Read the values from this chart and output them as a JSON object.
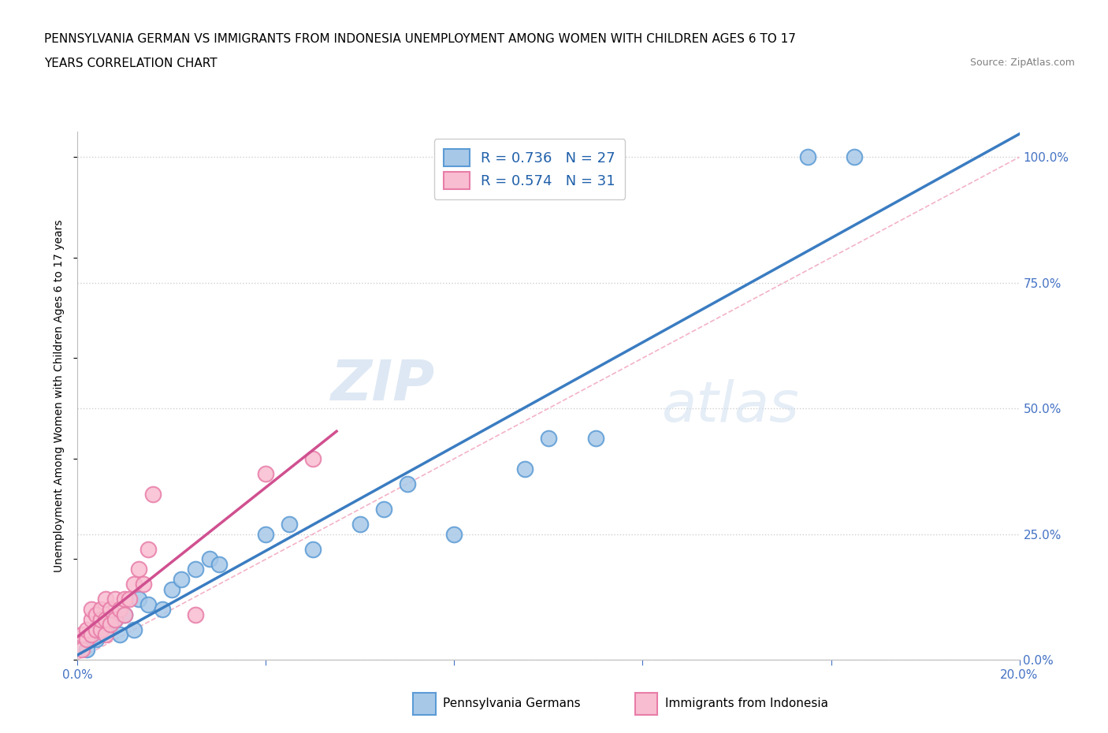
{
  "title_line1": "PENNSYLVANIA GERMAN VS IMMIGRANTS FROM INDONESIA UNEMPLOYMENT AMONG WOMEN WITH CHILDREN AGES 6 TO 17",
  "title_line2": "YEARS CORRELATION CHART",
  "source": "Source: ZipAtlas.com",
  "ylabel": "Unemployment Among Women with Children Ages 6 to 17 years",
  "xlim": [
    0.0,
    0.2
  ],
  "ylim": [
    0.0,
    1.05
  ],
  "y_ticks": [
    0.0,
    0.25,
    0.5,
    0.75,
    1.0
  ],
  "legend_entry1_label": "R = 0.736   N = 27",
  "legend_entry2_label": "R = 0.574   N = 31",
  "watermark_zip": "ZIP",
  "watermark_atlas": "atlas",
  "blue_color": "#a8c8e8",
  "blue_edge_color": "#5b9bd5",
  "pink_color": "#f8bdd0",
  "pink_edge_color": "#e87da8",
  "blue_line_color": "#3a7cc1",
  "pink_line_color": "#d05090",
  "diag_color": "#f0a0b8",
  "grid_color": "#d0d0d0",
  "tick_color": "#4472c4",
  "blue_scatter_x": [
    0.002,
    0.004,
    0.006,
    0.008,
    0.009,
    0.01,
    0.012,
    0.013,
    0.015,
    0.018,
    0.02,
    0.022,
    0.025,
    0.028,
    0.03,
    0.04,
    0.045,
    0.05,
    0.06,
    0.065,
    0.07,
    0.08,
    0.095,
    0.1,
    0.11,
    0.155,
    0.165
  ],
  "blue_scatter_y": [
    0.02,
    0.04,
    0.06,
    0.08,
    0.05,
    0.09,
    0.06,
    0.12,
    0.11,
    0.1,
    0.14,
    0.16,
    0.18,
    0.2,
    0.19,
    0.25,
    0.27,
    0.22,
    0.27,
    0.3,
    0.35,
    0.25,
    0.38,
    0.44,
    0.44,
    1.0,
    1.0
  ],
  "pink_scatter_x": [
    0.001,
    0.001,
    0.002,
    0.002,
    0.003,
    0.003,
    0.003,
    0.004,
    0.004,
    0.005,
    0.005,
    0.005,
    0.006,
    0.006,
    0.006,
    0.007,
    0.007,
    0.008,
    0.008,
    0.009,
    0.01,
    0.01,
    0.011,
    0.012,
    0.013,
    0.014,
    0.015,
    0.016,
    0.025,
    0.04,
    0.05
  ],
  "pink_scatter_y": [
    0.02,
    0.05,
    0.04,
    0.06,
    0.05,
    0.08,
    0.1,
    0.06,
    0.09,
    0.06,
    0.08,
    0.1,
    0.05,
    0.08,
    0.12,
    0.07,
    0.1,
    0.08,
    0.12,
    0.1,
    0.09,
    0.12,
    0.12,
    0.15,
    0.18,
    0.15,
    0.22,
    0.33,
    0.09,
    0.37,
    0.4
  ]
}
